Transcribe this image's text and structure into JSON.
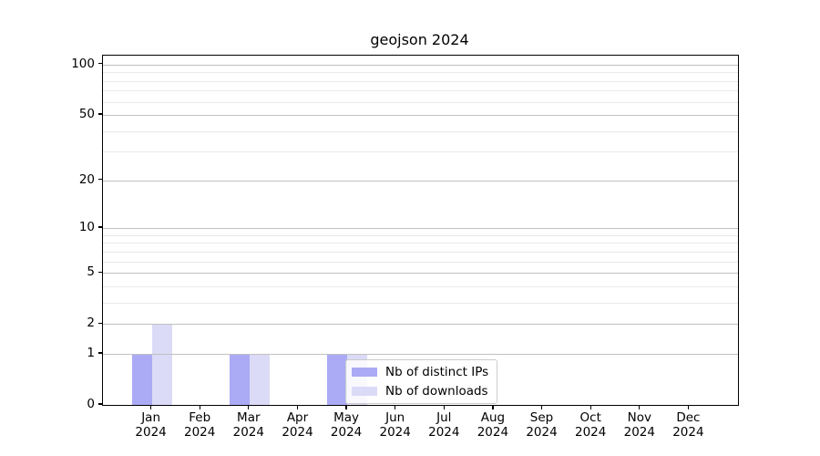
{
  "chart_data": {
    "type": "bar",
    "title": "geojson 2024",
    "x_tick_labels": [
      [
        "Jan",
        "2024"
      ],
      [
        "Feb",
        "2024"
      ],
      [
        "Mar",
        "2024"
      ],
      [
        "Apr",
        "2024"
      ],
      [
        "May",
        "2024"
      ],
      [
        "Jun",
        "2024"
      ],
      [
        "Jul",
        "2024"
      ],
      [
        "Aug",
        "2024"
      ],
      [
        "Sep",
        "2024"
      ],
      [
        "Oct",
        "2024"
      ],
      [
        "Nov",
        "2024"
      ],
      [
        "Dec",
        "2024"
      ]
    ],
    "series": [
      {
        "name": "Nb of distinct IPs",
        "color": "#aaaaf5",
        "values": [
          1,
          0,
          1,
          0,
          1,
          0,
          0,
          0,
          0,
          0,
          0,
          0
        ]
      },
      {
        "name": "Nb of downloads",
        "color": "#dbdbf7",
        "values": [
          2,
          0,
          1,
          0,
          1,
          0,
          0,
          0,
          0,
          0,
          0,
          0
        ]
      }
    ],
    "y_scale": "log10(value+1)",
    "y_major_ticks": [
      0,
      1,
      2,
      5,
      10,
      20,
      50,
      100
    ],
    "y_minor_gridlines": [
      3,
      4,
      6,
      7,
      8,
      9,
      30,
      40,
      60,
      70,
      80,
      90
    ],
    "ylim": [
      0,
      113
    ],
    "grid": true,
    "legend_position": "lower center",
    "colors": {
      "major_grid": "#c1c1c1",
      "minor_grid": "#eaeaea",
      "axis_frame": "#000000",
      "text": "#000000",
      "legend_border": "#cccccc"
    }
  }
}
